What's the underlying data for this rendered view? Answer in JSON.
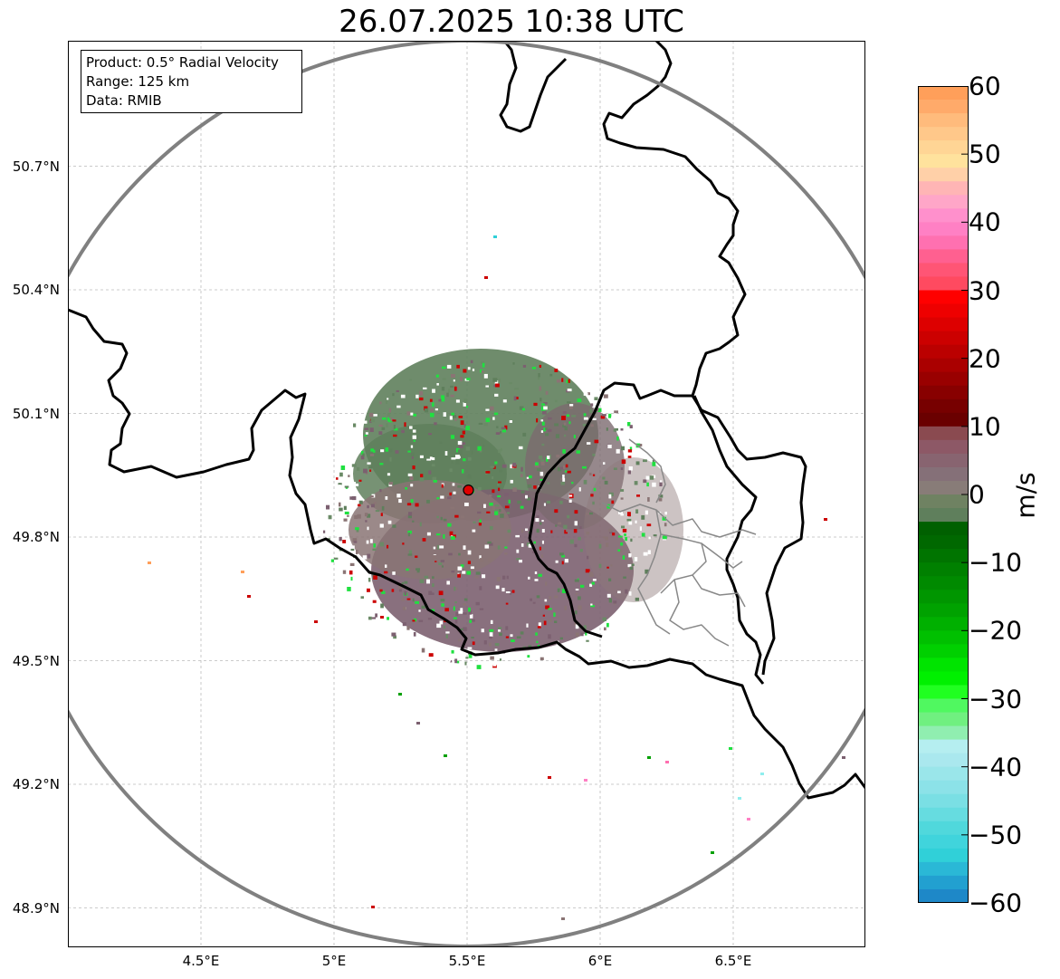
{
  "title": "26.07.2025 10:38 UTC",
  "info_box": {
    "lines": [
      "Product: 0.5° Radial Velocity",
      "Range: 125 km",
      "Data: RMIB"
    ]
  },
  "map": {
    "lon_range": [
      4.0,
      7.0
    ],
    "lat_range": [
      48.8,
      51.0
    ],
    "lat_ticks": [
      {
        "value": 50.7,
        "label": "50.7°N"
      },
      {
        "value": 50.4,
        "label": "50.4°N"
      },
      {
        "value": 50.1,
        "label": "50.1°N"
      },
      {
        "value": 49.8,
        "label": "49.8°N"
      },
      {
        "value": 49.5,
        "label": "49.5°N"
      },
      {
        "value": 49.2,
        "label": "49.2°N"
      },
      {
        "value": 48.9,
        "label": "48.9°N"
      }
    ],
    "lon_ticks": [
      {
        "value": 4.5,
        "label": "4.5°E"
      },
      {
        "value": 5.0,
        "label": "5°E"
      },
      {
        "value": 5.5,
        "label": "5.5°E"
      },
      {
        "value": 6.0,
        "label": "6°E"
      },
      {
        "value": 6.5,
        "label": "6.5°E"
      }
    ],
    "radar_site": {
      "lon": 5.505,
      "lat": 49.914
    },
    "range_ring_km": 125,
    "grid": true,
    "colors": {
      "border": "#000000",
      "sub_border": "#888888",
      "range_ring": "#808080",
      "radar_marker": "#e00000",
      "echo_green": "#5f7f5c",
      "echo_mauve": "#7c6070"
    }
  },
  "colorbar": {
    "unit": "m/s",
    "min": -60,
    "max": 60,
    "ticks": [
      {
        "value": 60,
        "label": "60"
      },
      {
        "value": 50,
        "label": "50"
      },
      {
        "value": 40,
        "label": "40"
      },
      {
        "value": 30,
        "label": "30"
      },
      {
        "value": 20,
        "label": "20"
      },
      {
        "value": 10,
        "label": "10"
      },
      {
        "value": 0,
        "label": "0"
      },
      {
        "value": -10,
        "label": "−10"
      },
      {
        "value": -20,
        "label": "−20"
      },
      {
        "value": -30,
        "label": "−30"
      },
      {
        "value": -40,
        "label": "−40"
      },
      {
        "value": -50,
        "label": "−50"
      },
      {
        "value": -60,
        "label": "−60"
      }
    ],
    "bands_top_to_bottom": [
      "#ff9f5a",
      "#ffaa6a",
      "#ffbb7c",
      "#ffc88a",
      "#ffd595",
      "#ffe29d",
      "#ffd0a8",
      "#ffb5b5",
      "#ffa6c8",
      "#ff90cc",
      "#ff80c4",
      "#ff70b0",
      "#ff6090",
      "#ff5575",
      "#ff4a60",
      "#ff0000",
      "#ee0000",
      "#dd0000",
      "#cc0000",
      "#bb0000",
      "#aa0000",
      "#990000",
      "#880000",
      "#770000",
      "#6a0000",
      "#8a4a50",
      "#8d5866",
      "#886470",
      "#857078",
      "#887c78",
      "#6f8262",
      "#5f7f5c",
      "#006000",
      "#006800",
      "#007400",
      "#008000",
      "#008a00",
      "#009600",
      "#00a200",
      "#00b000",
      "#00c000",
      "#00d000",
      "#00e400",
      "#00f000",
      "#20ff20",
      "#50f860",
      "#70f080",
      "#90eeb0",
      "#b5eef0",
      "#aae8ee",
      "#9ae6ea",
      "#8ce2e8",
      "#7adfe4",
      "#66dce0",
      "#50d8dc",
      "#40d4dc",
      "#30d0d8",
      "#2ab8d6",
      "#22a0d0",
      "#1e88c8"
    ]
  }
}
